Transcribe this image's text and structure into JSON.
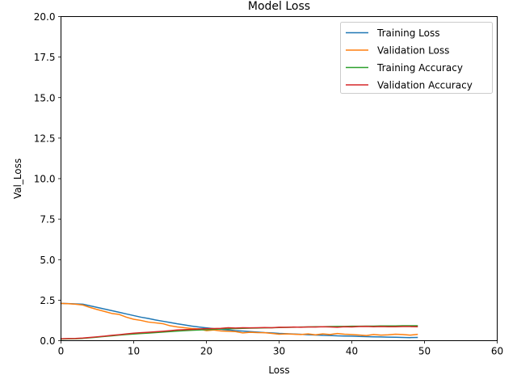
{
  "chart_data": {
    "type": "line",
    "title": "Model Loss",
    "xlabel": "Loss",
    "ylabel": "Val_Loss",
    "xlim": [
      0,
      60
    ],
    "ylim": [
      0,
      20
    ],
    "xticks": [
      "0",
      "10",
      "20",
      "30",
      "40",
      "50",
      "60"
    ],
    "yticks": [
      "0.0",
      "2.5",
      "5.0",
      "7.5",
      "10.0",
      "12.5",
      "15.0",
      "17.5",
      "20.0"
    ],
    "grid": false,
    "legend_position": "top-right",
    "x": [
      0,
      1,
      2,
      3,
      4,
      5,
      6,
      7,
      8,
      9,
      10,
      11,
      12,
      13,
      14,
      15,
      16,
      17,
      18,
      19,
      20,
      21,
      22,
      23,
      24,
      25,
      26,
      27,
      28,
      29,
      30,
      31,
      32,
      33,
      34,
      35,
      36,
      37,
      38,
      39,
      40,
      41,
      42,
      43,
      44,
      45,
      46,
      47,
      48,
      49
    ],
    "series": [
      {
        "name": "Training Loss",
        "color": "#1f77b4",
        "values": [
          2.3,
          2.29,
          2.27,
          2.25,
          2.15,
          2.05,
          1.95,
          1.85,
          1.75,
          1.65,
          1.55,
          1.45,
          1.37,
          1.28,
          1.2,
          1.12,
          1.04,
          0.97,
          0.9,
          0.84,
          0.79,
          0.74,
          0.7,
          0.66,
          0.62,
          0.59,
          0.56,
          0.53,
          0.5,
          0.48,
          0.45,
          0.43,
          0.41,
          0.39,
          0.37,
          0.35,
          0.33,
          0.32,
          0.3,
          0.29,
          0.28,
          0.26,
          0.25,
          0.24,
          0.23,
          0.22,
          0.21,
          0.2,
          0.19,
          0.2
        ]
      },
      {
        "name": "Validation Loss",
        "color": "#ff7f0e",
        "values": [
          2.3,
          2.28,
          2.25,
          2.2,
          2.05,
          1.92,
          1.8,
          1.68,
          1.62,
          1.45,
          1.32,
          1.25,
          1.15,
          1.1,
          1.05,
          0.92,
          0.85,
          0.8,
          0.75,
          0.72,
          0.62,
          0.66,
          0.6,
          0.58,
          0.56,
          0.48,
          0.52,
          0.5,
          0.49,
          0.45,
          0.4,
          0.42,
          0.4,
          0.38,
          0.42,
          0.36,
          0.42,
          0.38,
          0.44,
          0.4,
          0.38,
          0.35,
          0.32,
          0.38,
          0.34,
          0.36,
          0.4,
          0.38,
          0.34,
          0.39
        ]
      },
      {
        "name": "Training Accuracy",
        "color": "#2ca02c",
        "values": [
          0.1,
          0.11,
          0.12,
          0.14,
          0.18,
          0.22,
          0.26,
          0.3,
          0.34,
          0.38,
          0.41,
          0.44,
          0.47,
          0.5,
          0.53,
          0.56,
          0.59,
          0.62,
          0.64,
          0.66,
          0.68,
          0.7,
          0.72,
          0.73,
          0.75,
          0.76,
          0.77,
          0.78,
          0.79,
          0.8,
          0.81,
          0.82,
          0.83,
          0.84,
          0.85,
          0.86,
          0.86,
          0.87,
          0.88,
          0.88,
          0.89,
          0.89,
          0.9,
          0.9,
          0.91,
          0.91,
          0.91,
          0.92,
          0.92,
          0.92
        ]
      },
      {
        "name": "Validation Accuracy",
        "color": "#d62728",
        "values": [
          0.12,
          0.13,
          0.14,
          0.16,
          0.2,
          0.24,
          0.28,
          0.33,
          0.37,
          0.42,
          0.46,
          0.49,
          0.52,
          0.55,
          0.58,
          0.62,
          0.66,
          0.68,
          0.7,
          0.72,
          0.74,
          0.75,
          0.76,
          0.8,
          0.78,
          0.8,
          0.79,
          0.8,
          0.81,
          0.8,
          0.83,
          0.82,
          0.84,
          0.83,
          0.85,
          0.84,
          0.86,
          0.85,
          0.83,
          0.86,
          0.85,
          0.87,
          0.88,
          0.86,
          0.87,
          0.86,
          0.86,
          0.87,
          0.87,
          0.86
        ]
      }
    ]
  }
}
